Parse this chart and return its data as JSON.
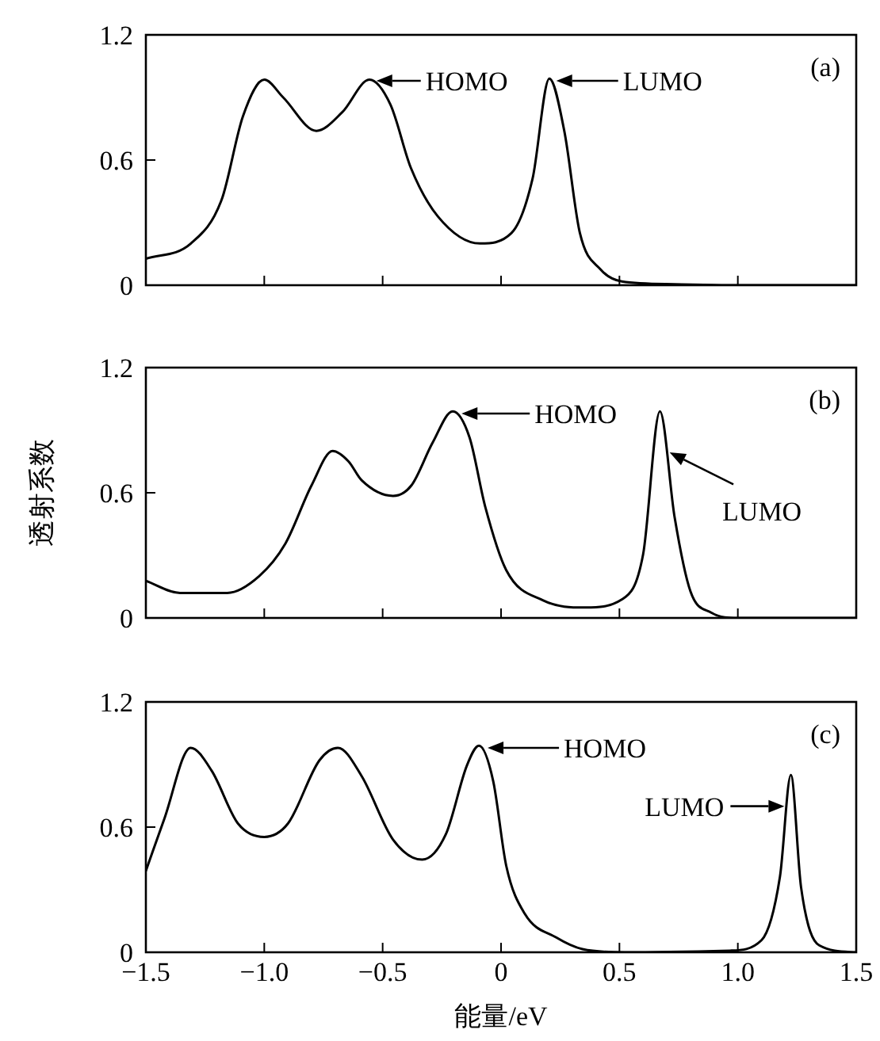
{
  "chart_data": [
    {
      "type": "line",
      "x": [
        -1.5,
        -1.31,
        -1.18,
        -1.09,
        -1.0,
        -0.92,
        -0.78,
        -0.67,
        -0.556,
        -0.467,
        -0.38,
        -0.267,
        -0.089,
        0.044,
        0.133,
        0.204,
        0.267,
        0.333,
        0.42,
        0.51,
        0.73,
        0.96,
        1.5
      ],
      "series": [
        {
          "color": "#000000",
          "values": [
            0.127,
            0.2,
            0.41,
            0.81,
            0.985,
            0.9,
            0.74,
            0.83,
            0.985,
            0.865,
            0.56,
            0.33,
            0.2,
            0.25,
            0.51,
            0.99,
            0.74,
            0.25,
            0.076,
            0.018,
            0.005,
            0,
            0
          ]
        }
      ],
      "xlim": [
        -1.5,
        1.5
      ],
      "ylim": [
        0,
        1.2
      ],
      "xticks": [
        -1.5,
        -1,
        -0.5,
        0,
        0.5,
        1,
        1.5
      ],
      "yticks": [
        0,
        0.6,
        1.2
      ],
      "tick_labels": "y",
      "annotations": [
        {
          "text": "HOMO",
          "x": -0.54,
          "y": 0.98
        },
        {
          "text": "LUMO",
          "x": 0.22,
          "y": 0.98
        },
        "(a)"
      ]
    },
    {
      "type": "line",
      "x": [
        -1.5,
        -1.356,
        -1.156,
        -1.022,
        -0.911,
        -0.8,
        -0.711,
        -0.644,
        -0.589,
        -0.456,
        -0.378,
        -0.289,
        -0.204,
        -0.133,
        -0.067,
        0.022,
        0.178,
        0.356,
        0.511,
        0.6,
        0.671,
        0.733,
        0.8,
        0.889,
        1.0,
        1.5
      ],
      "series": [
        {
          "color": "#000000",
          "values": [
            0.178,
            0.12,
            0.12,
            0.2,
            0.356,
            0.636,
            0.8,
            0.75,
            0.66,
            0.585,
            0.636,
            0.84,
            0.99,
            0.865,
            0.534,
            0.229,
            0.084,
            0.05,
            0.089,
            0.305,
            0.99,
            0.483,
            0.127,
            0.025,
            0,
            0
          ]
        }
      ],
      "xlim": [
        -1.5,
        1.5
      ],
      "ylim": [
        0,
        1.2
      ],
      "xticks": [
        -1.5,
        -1,
        -0.5,
        0,
        0.5,
        1,
        1.5
      ],
      "yticks": [
        0,
        0.6,
        1.2
      ],
      "tick_labels": "y",
      "ylabel": "透射系数",
      "annotations": [
        {
          "text": "HOMO",
          "x": -0.18,
          "y": 0.98
        },
        {
          "text": "LUMO",
          "x": 0.7,
          "y": 0.8
        },
        "(b)"
      ]
    },
    {
      "type": "line",
      "x": [
        -1.5,
        -1.422,
        -1.311,
        -1.222,
        -1.111,
        -1.0,
        -0.9,
        -0.767,
        -0.689,
        -0.589,
        -0.456,
        -0.333,
        -0.233,
        -0.144,
        -0.093,
        -0.033,
        0.022,
        0.1,
        0.233,
        0.344,
        0.522,
        0.967,
        1.1,
        1.178,
        1.224,
        1.267,
        1.344,
        1.5
      ],
      "series": [
        {
          "color": "#000000",
          "values": [
            0.39,
            0.64,
            0.98,
            0.87,
            0.617,
            0.553,
            0.617,
            0.92,
            0.98,
            0.845,
            0.54,
            0.444,
            0.566,
            0.896,
            0.99,
            0.82,
            0.414,
            0.185,
            0.071,
            0.015,
            0,
            0.008,
            0.058,
            0.363,
            0.85,
            0.312,
            0.033,
            0
          ]
        }
      ],
      "xlim": [
        -1.5,
        1.5
      ],
      "ylim": [
        0,
        1.2
      ],
      "xticks": [
        {
          "value": -1.5,
          "label": "−1.5"
        },
        {
          "value": -1,
          "label": "−1.0"
        },
        {
          "value": -0.5,
          "label": "−0.5"
        },
        0,
        0.5,
        {
          "value": 1,
          "label": "1.0"
        },
        1.5
      ],
      "yticks": [
        0,
        0.6,
        1.2
      ],
      "xlabel": "能量/eV",
      "annotations": [
        {
          "text": "HOMO",
          "x": -0.07,
          "y": 0.98
        },
        {
          "text": "LUMO",
          "x": 1.21,
          "y": 0.7
        },
        "(c)"
      ]
    }
  ]
}
